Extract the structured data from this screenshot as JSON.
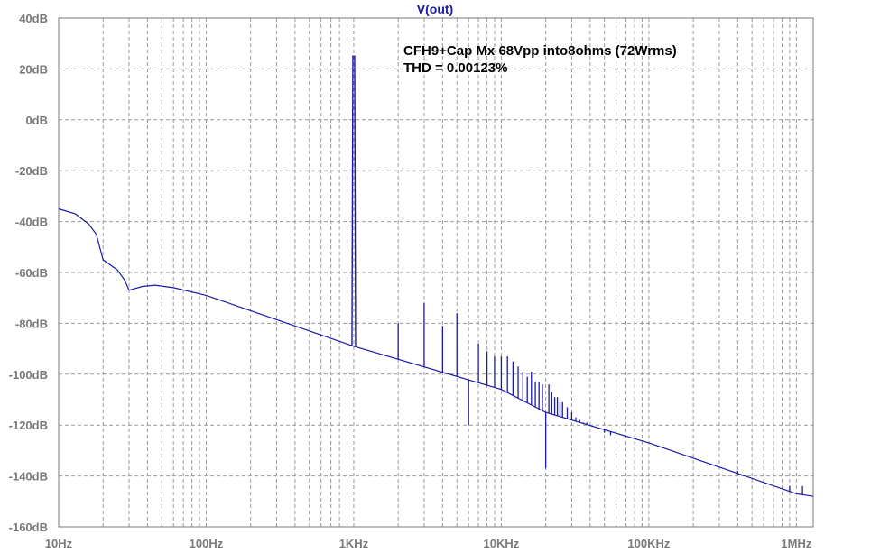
{
  "chart_data": {
    "type": "line",
    "title": "V(out)",
    "xlabel": "",
    "ylabel": "",
    "x_scale": "log",
    "xlim": [
      "10Hz",
      "1.3MHz"
    ],
    "ylim": [
      -160,
      40
    ],
    "grid": true,
    "x_tick_labels": [
      "10Hz",
      "100Hz",
      "1KHz",
      "10KHz",
      "100KHz",
      "1MHz"
    ],
    "y_tick_labels": [
      "40dB",
      "20dB",
      "0dB",
      "-20dB",
      "-40dB",
      "-60dB",
      "-80dB",
      "-100dB",
      "-120dB",
      "-140dB",
      "-160dB"
    ],
    "annotations": [
      "CFH9+Cap Mx  68Vpp into8ohms (72Wrms)",
      "THD = 0.00123%"
    ],
    "series": [
      {
        "color": "#1a1aa6",
        "noise_floor": [
          {
            "x_hz": 10,
            "y_db": -35
          },
          {
            "x_hz": 13,
            "y_db": -37
          },
          {
            "x_hz": 16,
            "y_db": -41
          },
          {
            "x_hz": 18,
            "y_db": -45
          },
          {
            "x_hz": 20,
            "y_db": -55
          },
          {
            "x_hz": 25,
            "y_db": -59
          },
          {
            "x_hz": 28,
            "y_db": -63
          },
          {
            "x_hz": 30,
            "y_db": -67
          },
          {
            "x_hz": 37,
            "y_db": -65.5
          },
          {
            "x_hz": 45,
            "y_db": -65
          },
          {
            "x_hz": 60,
            "y_db": -66
          },
          {
            "x_hz": 100,
            "y_db": -69
          },
          {
            "x_hz": 1000,
            "y_db": -89
          },
          {
            "x_hz": 10000,
            "y_db": -106
          },
          {
            "x_hz": 20000,
            "y_db": -115
          },
          {
            "x_hz": 100000,
            "y_db": -127
          },
          {
            "x_hz": 1000000,
            "y_db": -147
          },
          {
            "x_hz": 1300000,
            "y_db": -148
          }
        ],
        "peaks": [
          {
            "x_hz": 1000,
            "y_db": 25
          },
          {
            "x_hz": 2000,
            "y_db": -80
          },
          {
            "x_hz": 3000,
            "y_db": -72
          },
          {
            "x_hz": 4000,
            "y_db": -81
          },
          {
            "x_hz": 5000,
            "y_db": -76
          },
          {
            "x_hz": 6000,
            "y_db": -120
          },
          {
            "x_hz": 7000,
            "y_db": -88
          },
          {
            "x_hz": 8000,
            "y_db": -91
          },
          {
            "x_hz": 9000,
            "y_db": -93
          },
          {
            "x_hz": 10000,
            "y_db": -93
          },
          {
            "x_hz": 11000,
            "y_db": -93
          },
          {
            "x_hz": 12000,
            "y_db": -95
          },
          {
            "x_hz": 13000,
            "y_db": -97
          },
          {
            "x_hz": 14000,
            "y_db": -99
          },
          {
            "x_hz": 15000,
            "y_db": -101
          },
          {
            "x_hz": 16000,
            "y_db": -99
          },
          {
            "x_hz": 17000,
            "y_db": -103
          },
          {
            "x_hz": 18000,
            "y_db": -103
          },
          {
            "x_hz": 19000,
            "y_db": -104
          },
          {
            "x_hz": 20000,
            "y_db": -137
          },
          {
            "x_hz": 21000,
            "y_db": -104
          },
          {
            "x_hz": 22000,
            "y_db": -107
          },
          {
            "x_hz": 23000,
            "y_db": -109
          },
          {
            "x_hz": 24000,
            "y_db": -109
          },
          {
            "x_hz": 25000,
            "y_db": -111
          },
          {
            "x_hz": 26000,
            "y_db": -111
          },
          {
            "x_hz": 28000,
            "y_db": -113
          },
          {
            "x_hz": 30000,
            "y_db": -115
          },
          {
            "x_hz": 32000,
            "y_db": -117
          },
          {
            "x_hz": 34000,
            "y_db": -118
          },
          {
            "x_hz": 36000,
            "y_db": -119
          },
          {
            "x_hz": 38000,
            "y_db": -119
          },
          {
            "x_hz": 40000,
            "y_db": -120
          },
          {
            "x_hz": 45000,
            "y_db": -121
          },
          {
            "x_hz": 50000,
            "y_db": -123
          },
          {
            "x_hz": 55000,
            "y_db": -124
          },
          {
            "x_hz": 200000,
            "y_db": -133
          },
          {
            "x_hz": 400000,
            "y_db": -138
          },
          {
            "x_hz": 700000,
            "y_db": -144
          },
          {
            "x_hz": 900000,
            "y_db": -144
          },
          {
            "x_hz": 1100000,
            "y_db": -144
          }
        ]
      }
    ]
  }
}
